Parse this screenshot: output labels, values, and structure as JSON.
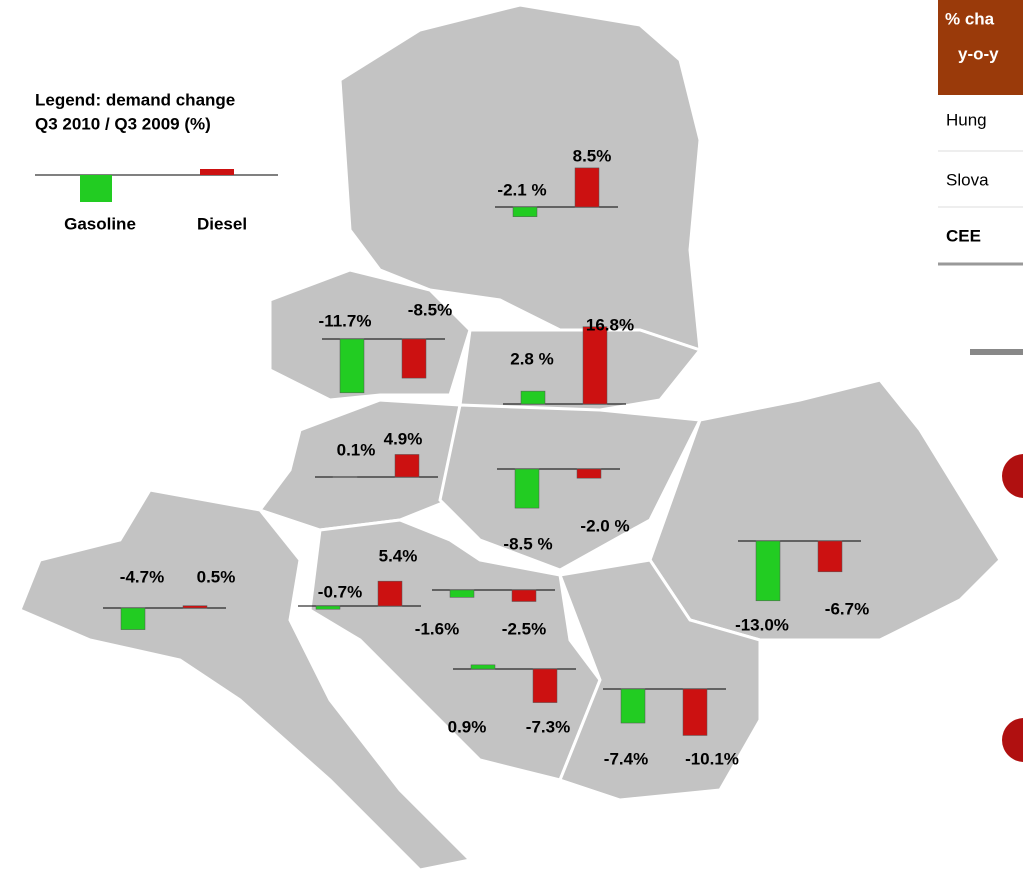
{
  "legend": {
    "title_lines": [
      "Legend: demand change",
      "Q3 2010 / Q3 2009 (%)"
    ]
  },
  "chart_data": {
    "type": "bar",
    "series": [
      {
        "name": "Gasoline",
        "color": "#22cc22",
        "values": [
          -2.1,
          -11.7,
          2.8,
          0.1,
          -8.5,
          -13.0,
          -4.7,
          -0.7,
          -1.6,
          0.9,
          -7.4
        ],
        "value_labels": [
          "-2.1 %",
          "-11.7%",
          "2.8 %",
          "0.1%",
          "-8.5 %",
          "-13.0%",
          "-4.7%",
          "-0.7%",
          "-1.6%",
          "0.9%",
          "-7.4%"
        ]
      },
      {
        "name": "Diesel",
        "color": "#cc1111",
        "values": [
          8.5,
          -8.5,
          16.8,
          4.9,
          -2.0,
          -6.7,
          0.5,
          5.4,
          -2.5,
          -7.3,
          -10.1
        ],
        "value_labels": [
          "8.5%",
          "-8.5%",
          "16.8%",
          "4.9%",
          "-2.0 %",
          "-6.7%",
          "0.5%",
          "5.4%",
          "-2.5%",
          "-7.3%",
          "-10.1%"
        ]
      }
    ]
  },
  "table": {
    "header": [
      "% cha",
      "y-o-y"
    ],
    "rows": [
      "Hung",
      "Slova",
      "CEE"
    ]
  }
}
